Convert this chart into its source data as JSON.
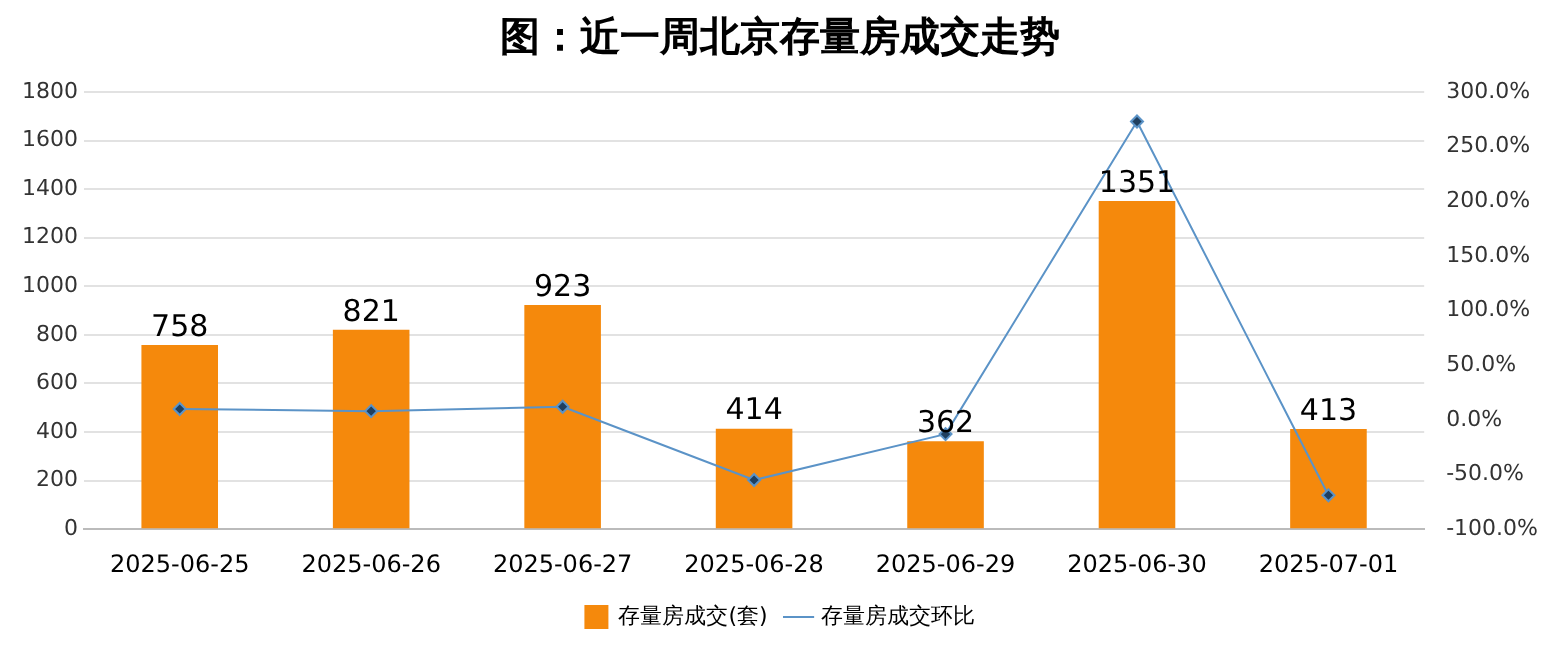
{
  "chart_data": {
    "type": "bar",
    "title": "图：近一周北京存量房成交走势",
    "categories": [
      "2025-06-25",
      "2025-06-26",
      "2025-06-27",
      "2025-06-28",
      "2025-06-29",
      "2025-06-30",
      "2025-07-01"
    ],
    "series": [
      {
        "name": "存量房成交(套)",
        "color": "#f5890c",
        "values": [
          758,
          821,
          923,
          414,
          362,
          1351,
          413
        ],
        "value_labels": [
          "758",
          "821",
          "923",
          "414",
          "362",
          "1351",
          "413"
        ]
      },
      {
        "name": "存量房成交环比",
        "type": "line",
        "axis": "y2",
        "color": "#5b93c7",
        "marker": "diamond",
        "values": [
          10,
          8,
          12,
          -55,
          -13,
          273,
          -69
        ]
      }
    ],
    "ylim": [
      0,
      1800
    ],
    "yticks": [
      0,
      200,
      400,
      600,
      800,
      1000,
      1200,
      1400,
      1600,
      1800
    ],
    "y2lim": [
      -100,
      300
    ],
    "y2ticks": [
      {
        "value": -100,
        "label": "-100.0%"
      },
      {
        "value": -50,
        "label": "-50.0%"
      },
      {
        "value": 0,
        "label": "0.0%"
      },
      {
        "value": 50,
        "label": "50.0%"
      },
      {
        "value": 100,
        "label": "100.0%"
      },
      {
        "value": 150,
        "label": "150.0%"
      },
      {
        "value": 200,
        "label": "200.0%"
      },
      {
        "value": 250,
        "label": "250.0%"
      },
      {
        "value": 300,
        "label": "300.0%"
      }
    ],
    "grid": "y",
    "legend": "bottom"
  }
}
